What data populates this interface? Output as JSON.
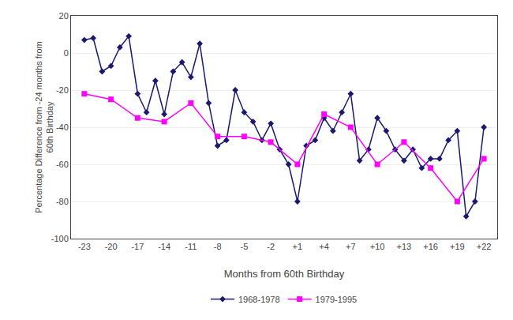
{
  "chart_data": {
    "type": "line",
    "xlabel": "Months from 60th Birthday",
    "ylabel": "Percentage Difference from -24 months from\n60th Birthday",
    "series": [
      {
        "name": "1968-1978",
        "color": "#191970",
        "marker": "diamond",
        "x": [
          -23,
          -22,
          -21,
          -20,
          -19,
          -18,
          -17,
          -16,
          -15,
          -14,
          -13,
          -12,
          -11,
          -10,
          -9,
          -8,
          -7,
          -6,
          -5,
          -4,
          -3,
          -2,
          -1,
          0,
          1,
          2,
          3,
          4,
          5,
          6,
          7,
          8,
          9,
          10,
          11,
          12,
          13,
          14,
          15,
          16,
          17,
          18,
          19,
          20,
          21,
          22
        ],
        "values": [
          7,
          8,
          -10,
          -7,
          3,
          9,
          -22,
          -32,
          -15,
          -33,
          -10,
          -5,
          -13,
          5,
          -27,
          -50,
          -47,
          -20,
          -32,
          -37,
          -47,
          -38,
          -52,
          -60,
          -80,
          -50,
          -47,
          -35,
          -42,
          -32,
          -22,
          -58,
          -52,
          -35,
          -42,
          -52,
          -58,
          -52,
          -62,
          -57,
          -57,
          -47,
          -42,
          -88,
          -80,
          -40
        ]
      },
      {
        "name": "1979-1995",
        "color": "#FF00FF",
        "marker": "square",
        "x": [
          -23,
          -20,
          -17,
          -14,
          -11,
          -8,
          -5,
          -2,
          1,
          4,
          7,
          10,
          13,
          16,
          19,
          22
        ],
        "values": [
          -22,
          -25,
          -35,
          -37,
          -27,
          -45,
          -45,
          -48,
          -60,
          -33,
          -40,
          -60,
          -48,
          -62,
          -80,
          -57
        ]
      }
    ],
    "xlim": [
      -24.5,
      23.5
    ],
    "ylim": [
      -100,
      20
    ],
    "xticks": [
      -23,
      -20,
      -17,
      -14,
      -11,
      -8,
      -5,
      -2,
      {
        "value": 1,
        "label": "+1"
      },
      {
        "value": 4,
        "label": "+4"
      },
      {
        "value": 7,
        "label": "+7"
      },
      {
        "value": 10,
        "label": "+10"
      },
      {
        "value": 13,
        "label": "+13"
      },
      {
        "value": 16,
        "label": "+16"
      },
      {
        "value": 19,
        "label": "+19"
      },
      {
        "value": 22,
        "label": "+22"
      }
    ],
    "yticks": [
      -100,
      -80,
      -60,
      -40,
      -20,
      0,
      20
    ],
    "grid": "y",
    "legend": "bottom"
  }
}
